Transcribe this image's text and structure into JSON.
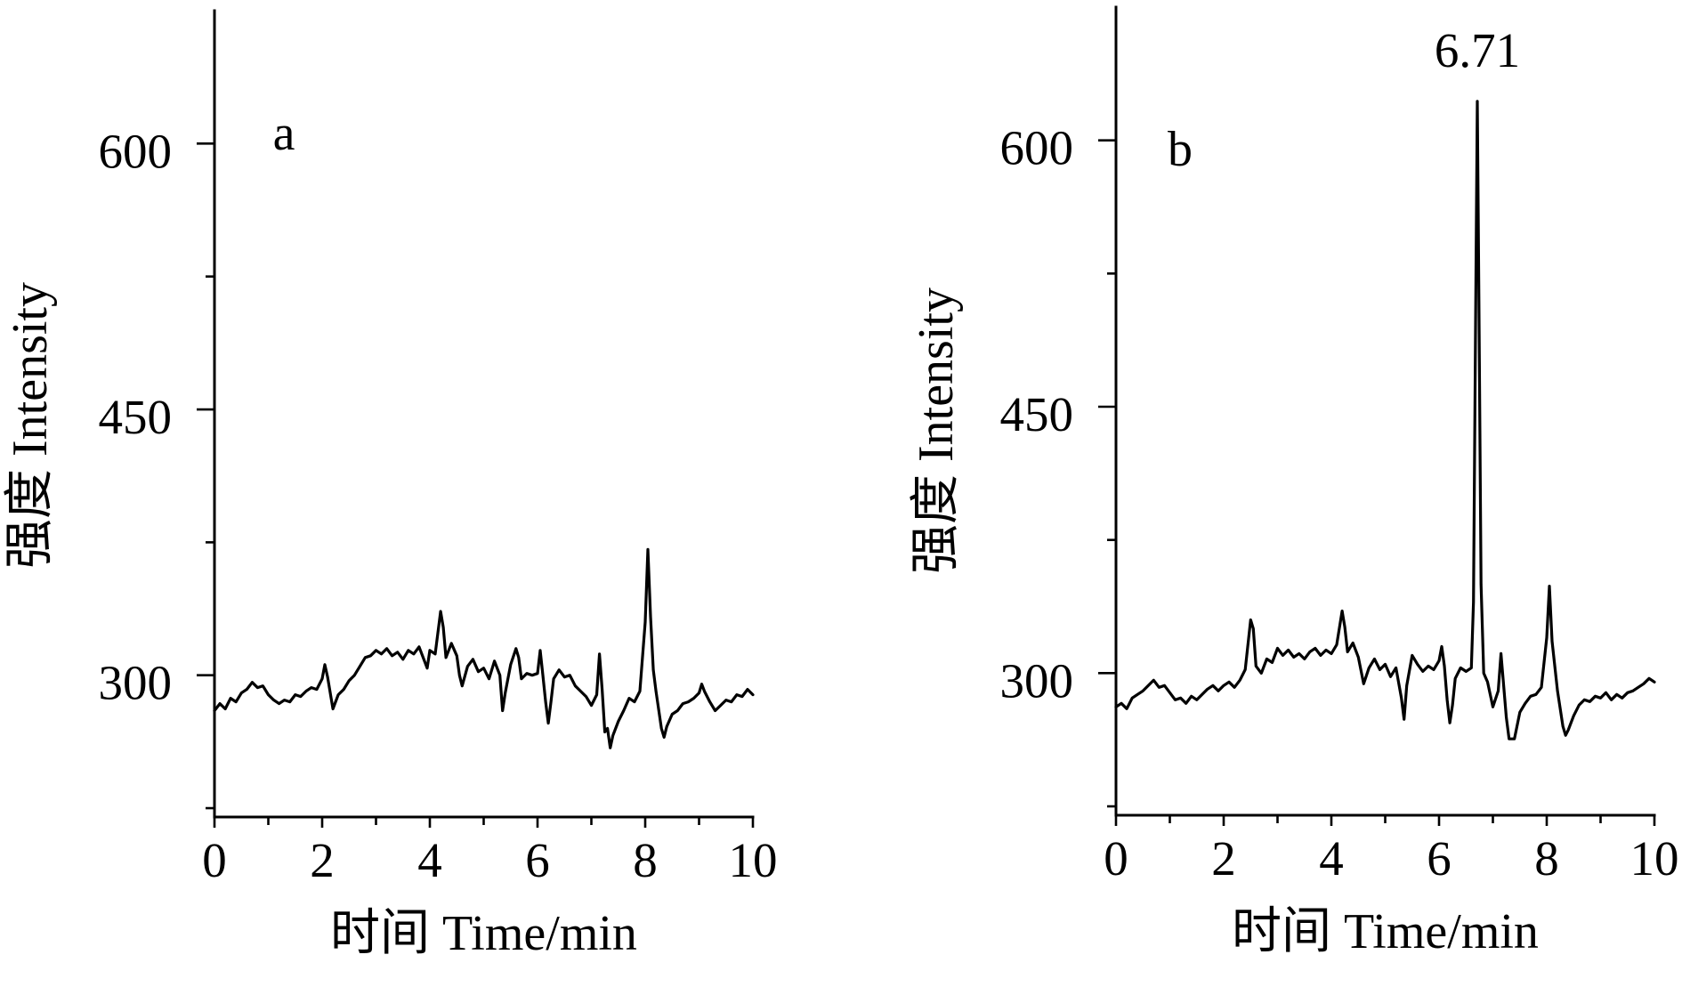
{
  "colors": {
    "line": "#000000",
    "axis": "#000000",
    "text": "#000000",
    "background": "#ffffff"
  },
  "chart_data": [
    {
      "type": "line",
      "panel_label": "a",
      "xlabel": "时间 Time/min",
      "ylabel": "强度 Intensity",
      "xlim": [
        0,
        10
      ],
      "ylim": [
        220,
        675
      ],
      "xticks": [
        0,
        2,
        4,
        6,
        8,
        10
      ],
      "xticks_minor": [
        1,
        3,
        5,
        7,
        9
      ],
      "yticks": [
        300,
        450,
        600
      ],
      "yticks_minor": [
        225,
        375,
        525
      ],
      "grid": false,
      "series": [
        {
          "x": [
            0,
            0.1,
            0.2,
            0.3,
            0.4,
            0.5,
            0.6,
            0.7,
            0.8,
            0.9,
            1.0,
            1.1,
            1.2,
            1.3,
            1.4,
            1.5,
            1.6,
            1.7,
            1.8,
            1.9,
            2.0,
            2.05,
            2.1,
            2.2,
            2.3,
            2.4,
            2.5,
            2.6,
            2.7,
            2.8,
            2.9,
            3.0,
            3.1,
            3.2,
            3.3,
            3.4,
            3.5,
            3.6,
            3.7,
            3.8,
            3.9,
            3.95,
            4.0,
            4.1,
            4.2,
            4.25,
            4.3,
            4.4,
            4.5,
            4.55,
            4.6,
            4.7,
            4.8,
            4.9,
            5.0,
            5.1,
            5.2,
            5.3,
            5.35,
            5.4,
            5.5,
            5.6,
            5.65,
            5.7,
            5.8,
            5.9,
            6.0,
            6.05,
            6.1,
            6.15,
            6.2,
            6.25,
            6.3,
            6.4,
            6.5,
            6.6,
            6.7,
            6.8,
            6.9,
            7.0,
            7.1,
            7.15,
            7.2,
            7.25,
            7.3,
            7.35,
            7.4,
            7.5,
            7.6,
            7.7,
            7.8,
            7.9,
            8.0,
            8.05,
            8.1,
            8.15,
            8.2,
            8.3,
            8.35,
            8.4,
            8.5,
            8.6,
            8.7,
            8.8,
            8.9,
            9.0,
            9.05,
            9.1,
            9.2,
            9.3,
            9.4,
            9.5,
            9.6,
            9.7,
            9.8,
            9.9,
            10.0
          ],
          "y": [
            280,
            284,
            281,
            287,
            285,
            290,
            292,
            296,
            293,
            294,
            289,
            286,
            284,
            286,
            285,
            289,
            288,
            291,
            293,
            292,
            298,
            306,
            299,
            281,
            289,
            292,
            297,
            300,
            305,
            310,
            311,
            314,
            312,
            315,
            311,
            313,
            309,
            314,
            312,
            316,
            308,
            304,
            314,
            312,
            336,
            327,
            310,
            318,
            311,
            300,
            294,
            305,
            309,
            302,
            304,
            298,
            308,
            300,
            280,
            290,
            306,
            315,
            310,
            298,
            301,
            300,
            301,
            314,
            300,
            285,
            273,
            285,
            298,
            303,
            299,
            300,
            294,
            291,
            288,
            283,
            289,
            312,
            292,
            268,
            270,
            259,
            266,
            274,
            280,
            287,
            285,
            291,
            330,
            371,
            333,
            303,
            291,
            270,
            265,
            271,
            278,
            280,
            284,
            285,
            287,
            290,
            295,
            291,
            285,
            280,
            283,
            286,
            285,
            289,
            288,
            292,
            289
          ]
        }
      ],
      "annotations": []
    },
    {
      "type": "line",
      "panel_label": "b",
      "xlabel": "时间 Time/min",
      "ylabel": "强度 Intensity",
      "xlim": [
        0,
        10
      ],
      "ylim": [
        220,
        675
      ],
      "xticks": [
        0,
        2,
        4,
        6,
        8,
        10
      ],
      "xticks_minor": [
        1,
        3,
        5,
        7,
        9
      ],
      "yticks": [
        300,
        450,
        600
      ],
      "yticks_minor": [
        225,
        375,
        525
      ],
      "grid": false,
      "series": [
        {
          "x": [
            0,
            0.1,
            0.2,
            0.3,
            0.4,
            0.5,
            0.6,
            0.7,
            0.8,
            0.9,
            1.0,
            1.1,
            1.2,
            1.3,
            1.4,
            1.5,
            1.6,
            1.7,
            1.8,
            1.9,
            2.0,
            2.1,
            2.2,
            2.3,
            2.4,
            2.5,
            2.55,
            2.6,
            2.7,
            2.8,
            2.9,
            3.0,
            3.1,
            3.2,
            3.3,
            3.4,
            3.5,
            3.6,
            3.7,
            3.8,
            3.9,
            4.0,
            4.1,
            4.2,
            4.25,
            4.3,
            4.4,
            4.5,
            4.6,
            4.7,
            4.8,
            4.9,
            5.0,
            5.1,
            5.2,
            5.3,
            5.35,
            5.4,
            5.5,
            5.6,
            5.7,
            5.8,
            5.9,
            6.0,
            6.05,
            6.1,
            6.15,
            6.2,
            6.25,
            6.3,
            6.4,
            6.5,
            6.6,
            6.64,
            6.68,
            6.71,
            6.74,
            6.78,
            6.83,
            6.9,
            7.0,
            7.1,
            7.15,
            7.2,
            7.25,
            7.3,
            7.4,
            7.5,
            7.6,
            7.7,
            7.8,
            7.9,
            8.0,
            8.05,
            8.1,
            8.2,
            8.3,
            8.35,
            8.4,
            8.5,
            8.6,
            8.7,
            8.8,
            8.9,
            9.0,
            9.1,
            9.2,
            9.3,
            9.4,
            9.5,
            9.6,
            9.7,
            9.8,
            9.9,
            10.0
          ],
          "y": [
            281,
            283,
            280,
            286,
            288,
            290,
            293,
            296,
            292,
            293,
            289,
            285,
            286,
            283,
            287,
            285,
            288,
            291,
            293,
            290,
            293,
            295,
            292,
            296,
            302,
            330,
            325,
            304,
            300,
            308,
            306,
            314,
            310,
            313,
            309,
            311,
            308,
            312,
            314,
            310,
            313,
            311,
            316,
            335,
            326,
            312,
            317,
            309,
            294,
            303,
            308,
            302,
            305,
            298,
            303,
            286,
            274,
            293,
            310,
            305,
            301,
            304,
            302,
            307,
            315,
            304,
            285,
            272,
            282,
            297,
            303,
            301,
            303,
            340,
            500,
            622,
            510,
            350,
            300,
            295,
            281,
            290,
            311,
            293,
            275,
            263,
            263,
            278,
            283,
            287,
            288,
            292,
            320,
            349,
            318,
            290,
            270,
            265,
            268,
            276,
            282,
            285,
            284,
            287,
            286,
            289,
            285,
            288,
            286,
            289,
            290,
            292,
            294,
            297,
            295
          ]
        }
      ],
      "annotations": [
        {
          "text": "6.71",
          "x": 6.71
        }
      ]
    }
  ]
}
